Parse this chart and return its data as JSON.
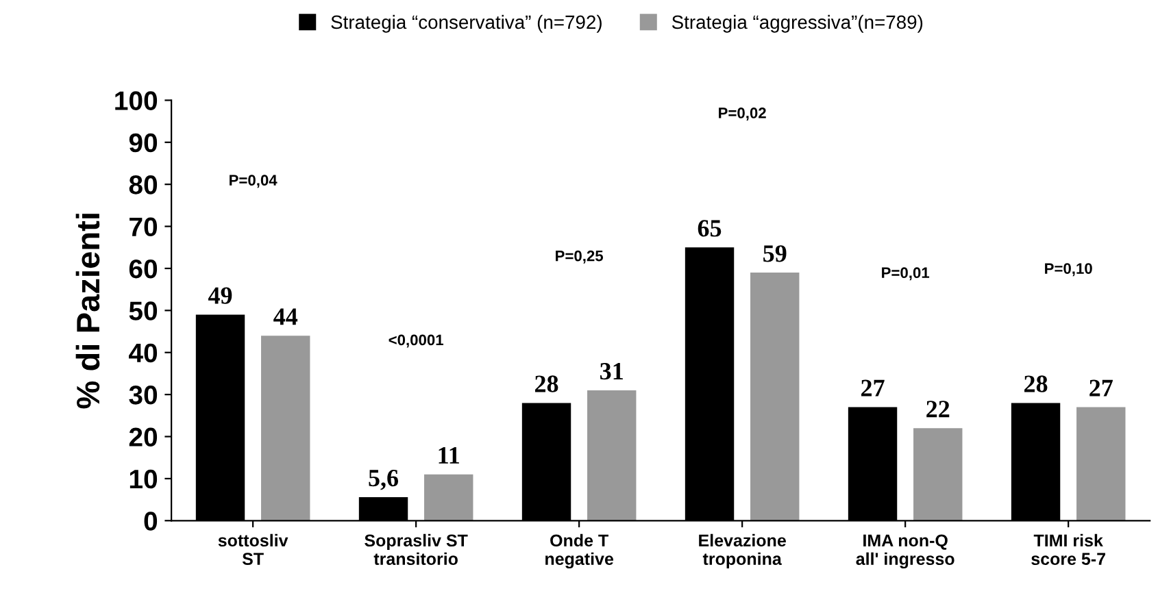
{
  "chart_data": {
    "type": "bar",
    "ylabel": "% di Pazienti",
    "categories": [
      "sottosliv\nST",
      "Soprasliv ST\ntransitorio",
      "Onde T\nnegative",
      "Elevazione\ntroponina",
      "IMA non-Q\nall' ingresso",
      "TIMI risk\nscore 5-7"
    ],
    "series": [
      {
        "name": "Strategia “conservativa” (n=792)",
        "color": "#000000",
        "values": [
          49,
          5.6,
          28,
          65,
          27,
          28
        ],
        "value_labels": [
          "49",
          "5,6",
          "28",
          "65",
          "27",
          "28"
        ]
      },
      {
        "name": "Strategia “aggressiva”(n=789)",
        "color": "#999999",
        "values": [
          44,
          11,
          31,
          59,
          22,
          27
        ],
        "value_labels": [
          "44",
          "11",
          "31",
          "59",
          "22",
          "27"
        ]
      }
    ],
    "ylim": [
      0,
      100
    ],
    "yticks": [
      0,
      10,
      20,
      30,
      40,
      50,
      60,
      70,
      80,
      90,
      100
    ],
    "grid": false,
    "legend": "top",
    "annotations": [
      "P=0,04",
      "<0,0001",
      "P=0,25",
      "P=0,02",
      "P=0,01",
      "P=0,10"
    ]
  }
}
